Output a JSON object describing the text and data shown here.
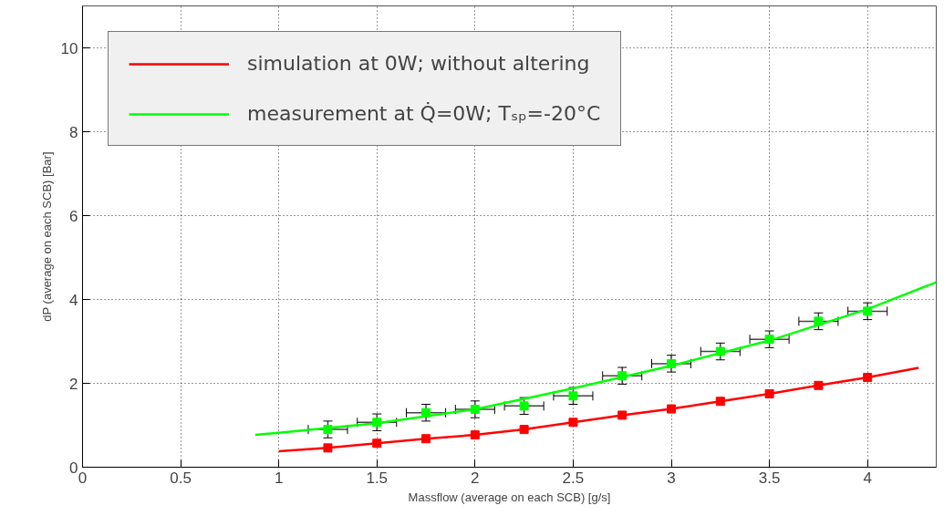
{
  "chart_data": {
    "type": "line",
    "xlabel": "Massflow (average on each SCB) [g/s]",
    "ylabel": "dP (average on each SCB) [Bar]",
    "xlim": [
      0,
      4.35
    ],
    "ylim": [
      0,
      11
    ],
    "xticks": [
      0,
      0.5,
      1,
      1.5,
      2,
      2.5,
      3,
      3.5,
      4
    ],
    "yticks": [
      0,
      2,
      4,
      6,
      8,
      10
    ],
    "grid": true,
    "legend": "top left",
    "series": [
      {
        "name": "simulation at 0W; without altering",
        "color": "#ff0000",
        "marker": "none",
        "x": [
          1.0,
          1.25,
          1.5,
          1.75,
          2.0,
          2.25,
          2.5,
          2.75,
          3.0,
          3.25,
          3.5,
          3.75,
          4.0,
          4.26
        ],
        "values": [
          0.38,
          0.46,
          0.57,
          0.68,
          0.77,
          0.9,
          1.07,
          1.24,
          1.39,
          1.57,
          1.75,
          1.95,
          2.14,
          2.37
        ]
      },
      {
        "type": "scatter",
        "color": "#ff0000",
        "marker": "square",
        "x": [
          1.25,
          1.5,
          1.75,
          2.0,
          2.25,
          2.5,
          2.75,
          3.0,
          3.25,
          3.5,
          3.75,
          4.0
        ],
        "values": [
          0.46,
          0.57,
          0.68,
          0.77,
          0.9,
          1.07,
          1.24,
          1.39,
          1.57,
          1.75,
          1.95,
          2.14
        ]
      },
      {
        "name": "measurement at Q̇=0W; Tₛₚ=-20°C",
        "color": "#00ff00",
        "marker": "none",
        "x": [
          0.88,
          1.0,
          1.5,
          2.0,
          2.5,
          3.0,
          3.5,
          4.0,
          4.35
        ],
        "values": [
          0.77,
          0.82,
          1.05,
          1.38,
          1.88,
          2.42,
          3.02,
          3.77,
          4.41
        ]
      },
      {
        "type": "scatter",
        "color": "#00ff00",
        "marker": "square",
        "x": [
          1.25,
          1.5,
          1.75,
          2.0,
          2.25,
          2.5,
          2.75,
          3.0,
          3.25,
          3.5,
          3.75,
          4.0
        ],
        "values": [
          0.9,
          1.07,
          1.3,
          1.38,
          1.46,
          1.7,
          2.18,
          2.47,
          2.76,
          3.05,
          3.48,
          3.72
        ],
        "errors": [
          0.2,
          0.2,
          0.2,
          0.2,
          0.2,
          0.2,
          0.2,
          0.2,
          0.2,
          0.2,
          0.2,
          0.2
        ],
        "xerrors": [
          0.1,
          0.1,
          0.1,
          0.1,
          0.1,
          0.1,
          0.1,
          0.1,
          0.1,
          0.1,
          0.1,
          0.1
        ]
      }
    ]
  }
}
